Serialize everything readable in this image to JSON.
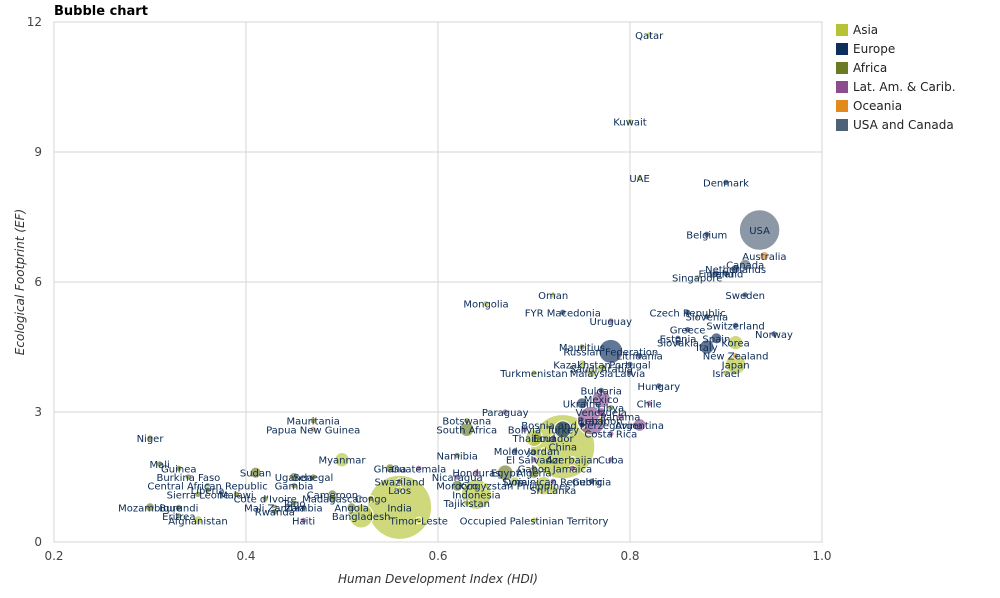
{
  "chart_data": {
    "type": "scatter",
    "title": "Bubble chart",
    "xlabel": "Human Development Index (HDI)",
    "ylabel": "Ecological Footprint (EF)",
    "xlim": [
      0.2,
      1.0
    ],
    "ylim": [
      0,
      12
    ],
    "xticks": [
      "0.2",
      "0.4",
      "0.6",
      "0.8",
      "1.0"
    ],
    "yticks": [
      "0",
      "3",
      "6",
      "9",
      "12"
    ],
    "grid": true,
    "legend_position": "right",
    "series": [
      {
        "name": "Asia",
        "color": "#b5c334"
      },
      {
        "name": "Europe",
        "color": "#0e2e5e"
      },
      {
        "name": "Africa",
        "color": "#6b7a25"
      },
      {
        "name": "Lat. Am. & Carib.",
        "color": "#8b4d8e"
      },
      {
        "name": "Oceania",
        "color": "#e38a1c"
      },
      {
        "name": "USA and Canada",
        "color": "#4e6177"
      }
    ],
    "points": [
      {
        "label": "Qatar",
        "x": 0.82,
        "y": 11.7,
        "series": "Asia",
        "size": 1
      },
      {
        "label": "Kuwait",
        "x": 0.8,
        "y": 9.7,
        "series": "Asia",
        "size": 1
      },
      {
        "label": "UAE",
        "x": 0.81,
        "y": 8.4,
        "series": "Asia",
        "size": 1
      },
      {
        "label": "Denmark",
        "x": 0.9,
        "y": 8.3,
        "series": "Europe",
        "size": 1
      },
      {
        "label": "USA",
        "x": 0.935,
        "y": 7.2,
        "series": "USA and Canada",
        "size": 40
      },
      {
        "label": "Belgium",
        "x": 0.88,
        "y": 7.1,
        "series": "Europe",
        "size": 1
      },
      {
        "label": "Australia",
        "x": 0.94,
        "y": 6.6,
        "series": "Oceania",
        "size": 2
      },
      {
        "label": "Canada",
        "x": 0.92,
        "y": 6.4,
        "series": "USA and Canada",
        "size": 3
      },
      {
        "label": "Netherlands",
        "x": 0.91,
        "y": 6.3,
        "series": "Europe",
        "size": 2
      },
      {
        "label": "Finland",
        "x": 0.89,
        "y": 6.2,
        "series": "Europe",
        "size": 1
      },
      {
        "label": "Ireland",
        "x": 0.9,
        "y": 6.2,
        "series": "Europe",
        "size": 1
      },
      {
        "label": "Singapore",
        "x": 0.87,
        "y": 6.1,
        "series": "Asia",
        "size": 1
      },
      {
        "label": "Sweden",
        "x": 0.92,
        "y": 5.7,
        "series": "Europe",
        "size": 1
      },
      {
        "label": "Oman",
        "x": 0.72,
        "y": 5.7,
        "series": "Asia",
        "size": 1
      },
      {
        "label": "Mongolia",
        "x": 0.65,
        "y": 5.5,
        "series": "Asia",
        "size": 1
      },
      {
        "label": "FYR Macedonia",
        "x": 0.73,
        "y": 5.3,
        "series": "Europe",
        "size": 1
      },
      {
        "label": "Czech Republic",
        "x": 0.86,
        "y": 5.3,
        "series": "Europe",
        "size": 1
      },
      {
        "label": "Slovenia",
        "x": 0.88,
        "y": 5.2,
        "series": "Europe",
        "size": 1
      },
      {
        "label": "Uruguay",
        "x": 0.78,
        "y": 5.1,
        "series": "Lat. Am. & Carib.",
        "size": 1
      },
      {
        "label": "Switzerland",
        "x": 0.91,
        "y": 5.0,
        "series": "Europe",
        "size": 1
      },
      {
        "label": "Greece",
        "x": 0.86,
        "y": 4.9,
        "series": "Europe",
        "size": 1
      },
      {
        "label": "Estonia",
        "x": 0.85,
        "y": 4.7,
        "series": "Europe",
        "size": 1
      },
      {
        "label": "Norway",
        "x": 0.95,
        "y": 4.8,
        "series": "Europe",
        "size": 1
      },
      {
        "label": "Korea",
        "x": 0.91,
        "y": 4.6,
        "series": "Asia",
        "size": 5
      },
      {
        "label": "Slovakia",
        "x": 0.85,
        "y": 4.6,
        "series": "Europe",
        "size": 1
      },
      {
        "label": "Spain",
        "x": 0.89,
        "y": 4.7,
        "series": "Europe",
        "size": 3
      },
      {
        "label": "Italy",
        "x": 0.88,
        "y": 4.5,
        "series": "Europe",
        "size": 5
      },
      {
        "label": "Mauritius",
        "x": 0.75,
        "y": 4.5,
        "series": "Africa",
        "size": 1
      },
      {
        "label": "Russian Federation",
        "x": 0.78,
        "y": 4.4,
        "series": "Europe",
        "size": 14
      },
      {
        "label": "Lithuania",
        "x": 0.81,
        "y": 4.3,
        "series": "Europe",
        "size": 1
      },
      {
        "label": "New Zealand",
        "x": 0.91,
        "y": 4.3,
        "series": "Oceania",
        "size": 1
      },
      {
        "label": "Japan",
        "x": 0.91,
        "y": 4.1,
        "series": "Asia",
        "size": 10
      },
      {
        "label": "Kazakhstan",
        "x": 0.75,
        "y": 4.1,
        "series": "Asia",
        "size": 2
      },
      {
        "label": "Portugal",
        "x": 0.8,
        "y": 4.1,
        "series": "Europe",
        "size": 1
      },
      {
        "label": "Saudi Arabia",
        "x": 0.77,
        "y": 4.0,
        "series": "Asia",
        "size": 2
      },
      {
        "label": "Turkmenistan",
        "x": 0.7,
        "y": 3.9,
        "series": "Asia",
        "size": 1
      },
      {
        "label": "Malaysia",
        "x": 0.76,
        "y": 3.9,
        "series": "Asia",
        "size": 2
      },
      {
        "label": "Latvia",
        "x": 0.8,
        "y": 3.9,
        "series": "Europe",
        "size": 1
      },
      {
        "label": "Israel",
        "x": 0.9,
        "y": 3.9,
        "series": "Asia",
        "size": 1
      },
      {
        "label": "Hungary",
        "x": 0.83,
        "y": 3.6,
        "series": "Europe",
        "size": 1
      },
      {
        "label": "Bulgaria",
        "x": 0.77,
        "y": 3.5,
        "series": "Europe",
        "size": 1
      },
      {
        "label": "Mexico",
        "x": 0.77,
        "y": 3.3,
        "series": "Lat. Am. & Carib.",
        "size": 8
      },
      {
        "label": "Chile",
        "x": 0.82,
        "y": 3.2,
        "series": "Lat. Am. & Carib.",
        "size": 1
      },
      {
        "label": "Ukraine",
        "x": 0.75,
        "y": 3.2,
        "series": "Europe",
        "size": 3
      },
      {
        "label": "Libya",
        "x": 0.78,
        "y": 3.1,
        "series": "Africa",
        "size": 1
      },
      {
        "label": "Venezuela",
        "x": 0.77,
        "y": 3.0,
        "series": "Lat. Am. & Carib.",
        "size": 2
      },
      {
        "label": "Panama",
        "x": 0.79,
        "y": 2.9,
        "series": "Lat. Am. & Carib.",
        "size": 1
      },
      {
        "label": "Paraguay",
        "x": 0.67,
        "y": 3.0,
        "series": "Lat. Am. & Carib.",
        "size": 1
      },
      {
        "label": "Mauritania",
        "x": 0.47,
        "y": 2.8,
        "series": "Africa",
        "size": 1
      },
      {
        "label": "Botswana",
        "x": 0.63,
        "y": 2.8,
        "series": "Africa",
        "size": 1
      },
      {
        "label": "Brazil",
        "x": 0.76,
        "y": 2.8,
        "series": "Lat. Am. & Carib.",
        "size": 20
      },
      {
        "label": "Lebanon",
        "x": 0.77,
        "y": 2.8,
        "series": "Asia",
        "size": 1
      },
      {
        "label": "Papua New Guinea",
        "x": 0.47,
        "y": 2.6,
        "series": "Oceania",
        "size": 1
      },
      {
        "label": "Bosnia and Herzegovina",
        "x": 0.75,
        "y": 2.7,
        "series": "Europe",
        "size": 1
      },
      {
        "label": "Argentina",
        "x": 0.81,
        "y": 2.7,
        "series": "Lat. Am. & Carib.",
        "size": 4
      },
      {
        "label": "South Africa",
        "x": 0.63,
        "y": 2.6,
        "series": "Africa",
        "size": 5
      },
      {
        "label": "Bolivia",
        "x": 0.69,
        "y": 2.6,
        "series": "Lat. Am. & Carib.",
        "size": 1
      },
      {
        "label": "Turkey",
        "x": 0.73,
        "y": 2.6,
        "series": "Europe",
        "size": 7
      },
      {
        "label": "Costa Rica",
        "x": 0.78,
        "y": 2.5,
        "series": "Lat. Am. & Carib.",
        "size": 1
      },
      {
        "label": "Thailand",
        "x": 0.7,
        "y": 2.4,
        "series": "Asia",
        "size": 7
      },
      {
        "label": "Ecuador",
        "x": 0.72,
        "y": 2.4,
        "series": "Lat. Am. & Carib.",
        "size": 1
      },
      {
        "label": "Niger",
        "x": 0.3,
        "y": 2.4,
        "series": "Africa",
        "size": 1
      },
      {
        "label": "Moldova",
        "x": 0.68,
        "y": 2.1,
        "series": "Europe",
        "size": 1
      },
      {
        "label": "Jordan",
        "x": 0.71,
        "y": 2.1,
        "series": "Asia",
        "size": 1
      },
      {
        "label": "China",
        "x": 0.73,
        "y": 2.2,
        "series": "Asia",
        "size": 100
      },
      {
        "label": "Azerbaijan",
        "x": 0.74,
        "y": 1.9,
        "series": "Asia",
        "size": 1
      },
      {
        "label": "Cuba",
        "x": 0.78,
        "y": 1.9,
        "series": "Lat. Am. & Carib.",
        "size": 1
      },
      {
        "label": "Myanmar",
        "x": 0.5,
        "y": 1.9,
        "series": "Asia",
        "size": 5
      },
      {
        "label": "Namibia",
        "x": 0.62,
        "y": 2.0,
        "series": "Africa",
        "size": 1
      },
      {
        "label": "El Salvador",
        "x": 0.7,
        "y": 1.9,
        "series": "Lat. Am. & Carib.",
        "size": 1
      },
      {
        "label": "Gabon",
        "x": 0.7,
        "y": 1.7,
        "series": "Africa",
        "size": 1
      },
      {
        "label": "Jamaica",
        "x": 0.74,
        "y": 1.7,
        "series": "Lat. Am. & Carib.",
        "size": 1
      },
      {
        "label": "Guatemala",
        "x": 0.58,
        "y": 1.7,
        "series": "Lat. Am. & Carib.",
        "size": 1
      },
      {
        "label": "Mali",
        "x": 0.31,
        "y": 1.8,
        "series": "Africa",
        "size": 1
      },
      {
        "label": "Ghana",
        "x": 0.55,
        "y": 1.7,
        "series": "Africa",
        "size": 2
      },
      {
        "label": "Honduras",
        "x": 0.64,
        "y": 1.6,
        "series": "Lat. Am. & Carib.",
        "size": 1
      },
      {
        "label": "Egypt",
        "x": 0.67,
        "y": 1.6,
        "series": "Africa",
        "size": 6
      },
      {
        "label": "Guinea",
        "x": 0.33,
        "y": 1.7,
        "series": "Africa",
        "size": 1
      },
      {
        "label": "Sudan",
        "x": 0.41,
        "y": 1.6,
        "series": "Africa",
        "size": 3
      },
      {
        "label": "Senegal",
        "x": 0.47,
        "y": 1.5,
        "series": "Africa",
        "size": 1
      },
      {
        "label": "Uganda",
        "x": 0.45,
        "y": 1.5,
        "series": "Africa",
        "size": 2
      },
      {
        "label": "Nicaragua",
        "x": 0.62,
        "y": 1.5,
        "series": "Lat. Am. & Carib.",
        "size": 1
      },
      {
        "label": "Syria",
        "x": 0.68,
        "y": 1.4,
        "series": "Asia",
        "size": 2
      },
      {
        "label": "Dominican Republic",
        "x": 0.72,
        "y": 1.4,
        "series": "Lat. Am. & Carib.",
        "size": 1
      },
      {
        "label": "Georgia",
        "x": 0.76,
        "y": 1.4,
        "series": "Europe",
        "size": 1
      },
      {
        "label": "Algeria",
        "x": 0.7,
        "y": 1.6,
        "series": "Africa",
        "size": 3
      },
      {
        "label": "Burkina Faso",
        "x": 0.34,
        "y": 1.5,
        "series": "Africa",
        "size": 1
      },
      {
        "label": "Central African Republic",
        "x": 0.36,
        "y": 1.3,
        "series": "Africa",
        "size": 1
      },
      {
        "label": "Gambia",
        "x": 0.45,
        "y": 1.3,
        "series": "Africa",
        "size": 1
      },
      {
        "label": "Swaziland",
        "x": 0.56,
        "y": 1.4,
        "series": "Africa",
        "size": 1
      },
      {
        "label": "Laos",
        "x": 0.56,
        "y": 1.2,
        "series": "Asia",
        "size": 1
      },
      {
        "label": "Morocco",
        "x": 0.62,
        "y": 1.3,
        "series": "Africa",
        "size": 3
      },
      {
        "label": "Kyrgyzstan",
        "x": 0.65,
        "y": 1.3,
        "series": "Asia",
        "size": 1
      },
      {
        "label": "Philippines",
        "x": 0.71,
        "y": 1.3,
        "series": "Asia",
        "size": 8
      },
      {
        "label": "Sri Lanka",
        "x": 0.72,
        "y": 1.2,
        "series": "Asia",
        "size": 2
      },
      {
        "label": "Liberia",
        "x": 0.36,
        "y": 1.2,
        "series": "Africa",
        "size": 1
      },
      {
        "label": "Sierra Leone",
        "x": 0.35,
        "y": 1.1,
        "series": "Africa",
        "size": 1
      },
      {
        "label": "Malawi",
        "x": 0.39,
        "y": 1.1,
        "series": "Africa",
        "size": 1
      },
      {
        "label": "Cameroon",
        "x": 0.49,
        "y": 1.1,
        "series": "Africa",
        "size": 2
      },
      {
        "label": "Indonesia",
        "x": 0.64,
        "y": 1.1,
        "series": "Asia",
        "size": 22
      },
      {
        "label": "Cote d'Ivoire",
        "x": 0.42,
        "y": 1.0,
        "series": "Africa",
        "size": 1
      },
      {
        "label": "Madagascar",
        "x": 0.49,
        "y": 1.0,
        "series": "Africa",
        "size": 2
      },
      {
        "label": "Congo",
        "x": 0.53,
        "y": 1.0,
        "series": "Africa",
        "size": 1
      },
      {
        "label": "Togo",
        "x": 0.45,
        "y": 0.9,
        "series": "Africa",
        "size": 1
      },
      {
        "label": "Tajikistan",
        "x": 0.63,
        "y": 0.9,
        "series": "Asia",
        "size": 1
      },
      {
        "label": "Mozambique",
        "x": 0.3,
        "y": 0.8,
        "series": "Africa",
        "size": 2
      },
      {
        "label": "Burundi",
        "x": 0.33,
        "y": 0.8,
        "series": "Africa",
        "size": 1
      },
      {
        "label": "Mali Zambia",
        "x": 0.43,
        "y": 0.8,
        "series": "Africa",
        "size": 1
      },
      {
        "label": "Zambia",
        "x": 0.46,
        "y": 0.8,
        "series": "Africa",
        "size": 1
      },
      {
        "label": "Angola",
        "x": 0.51,
        "y": 0.8,
        "series": "Africa",
        "size": 2
      },
      {
        "label": "India",
        "x": 0.56,
        "y": 0.8,
        "series": "Asia",
        "size": 100
      },
      {
        "label": "Eritrea",
        "x": 0.33,
        "y": 0.6,
        "series": "Africa",
        "size": 1
      },
      {
        "label": "Rwanda",
        "x": 0.43,
        "y": 0.7,
        "series": "Africa",
        "size": 1
      },
      {
        "label": "Haiti",
        "x": 0.46,
        "y": 0.5,
        "series": "Lat. Am. & Carib.",
        "size": 1
      },
      {
        "label": "Bangladesh",
        "x": 0.52,
        "y": 0.6,
        "series": "Asia",
        "size": 14
      },
      {
        "label": "Afghanistan",
        "x": 0.35,
        "y": 0.5,
        "series": "Asia",
        "size": 2
      },
      {
        "label": "Timor-Leste",
        "x": 0.58,
        "y": 0.5,
        "series": "Asia",
        "size": 1
      },
      {
        "label": "Occupied Palestinian Territory",
        "x": 0.7,
        "y": 0.5,
        "series": "Asia",
        "size": 1
      }
    ]
  }
}
